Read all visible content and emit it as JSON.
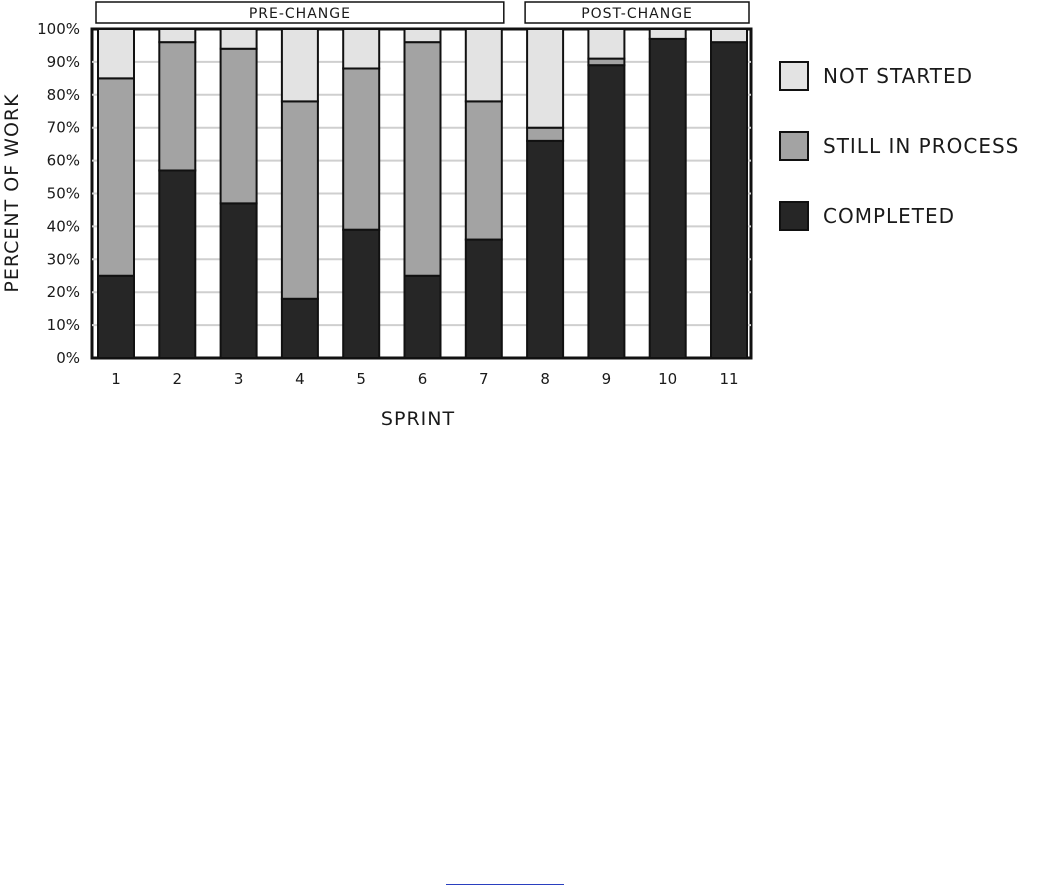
{
  "chart_data": {
    "type": "bar",
    "stacked": true,
    "normalized": true,
    "categories": [
      "1",
      "2",
      "3",
      "4",
      "5",
      "6",
      "7",
      "8",
      "9",
      "10",
      "11"
    ],
    "series": [
      {
        "name": "COMPLETED",
        "color": "#262626",
        "values": [
          25,
          57,
          47,
          18,
          39,
          25,
          36,
          66,
          89,
          97,
          96
        ]
      },
      {
        "name": "STILL IN PROCESS",
        "color": "#a3a3a3",
        "values": [
          60,
          39,
          47,
          60,
          49,
          71,
          42,
          4,
          2,
          0,
          0
        ]
      },
      {
        "name": "NOT STARTED",
        "color": "#e3e3e3",
        "values": [
          15,
          4,
          6,
          22,
          12,
          4,
          22,
          30,
          9,
          3,
          4
        ]
      }
    ],
    "xlabel": "SPRINT",
    "ylabel": "PERCENT OF WORK",
    "ylim": [
      0,
      100
    ],
    "yticks": [
      0,
      10,
      20,
      30,
      40,
      50,
      60,
      70,
      80,
      90,
      100
    ],
    "ytick_labels": [
      "0%",
      "10%",
      "20%",
      "30%",
      "40%",
      "50%",
      "60%",
      "70%",
      "80%",
      "90%",
      "100%"
    ],
    "grid": true,
    "legend_position": "right",
    "legend_order": [
      "NOT STARTED",
      "STILL IN PROCESS",
      "COMPLETED"
    ],
    "groups": [
      {
        "label": "PRE-CHANGE",
        "categories": [
          "1",
          "2",
          "3",
          "4",
          "5",
          "6",
          "7"
        ]
      },
      {
        "label": "POST-CHANGE",
        "categories": [
          "8",
          "9",
          "10",
          "11"
        ]
      }
    ]
  }
}
